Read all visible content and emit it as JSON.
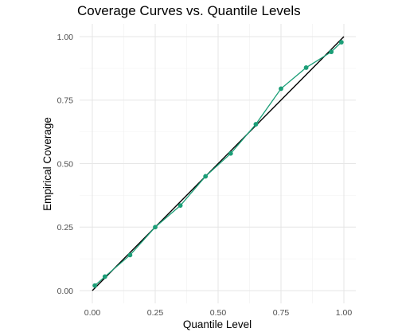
{
  "chart_data": {
    "type": "line",
    "title": "Coverage Curves vs. Quantile Levels",
    "xlabel": "Quantile Level",
    "ylabel": "Empirical Coverage",
    "xlim": [
      0,
      1
    ],
    "ylim": [
      0,
      1
    ],
    "x_ticks": [
      "0.00",
      "0.25",
      "0.50",
      "0.75",
      "1.00"
    ],
    "y_ticks": [
      "0.00",
      "0.25",
      "0.50",
      "0.75",
      "1.00"
    ],
    "grid": true,
    "reference_line": {
      "x": [
        0,
        1
      ],
      "y": [
        0,
        1
      ],
      "color": "#000000"
    },
    "series": [
      {
        "color": "#1b9e77",
        "x": [
          0.01,
          0.05,
          0.15,
          0.25,
          0.35,
          0.45,
          0.55,
          0.65,
          0.75,
          0.85,
          0.95,
          0.99
        ],
        "y": [
          0.02,
          0.055,
          0.14,
          0.25,
          0.335,
          0.45,
          0.54,
          0.655,
          0.795,
          0.878,
          0.94,
          0.978
        ]
      }
    ]
  }
}
